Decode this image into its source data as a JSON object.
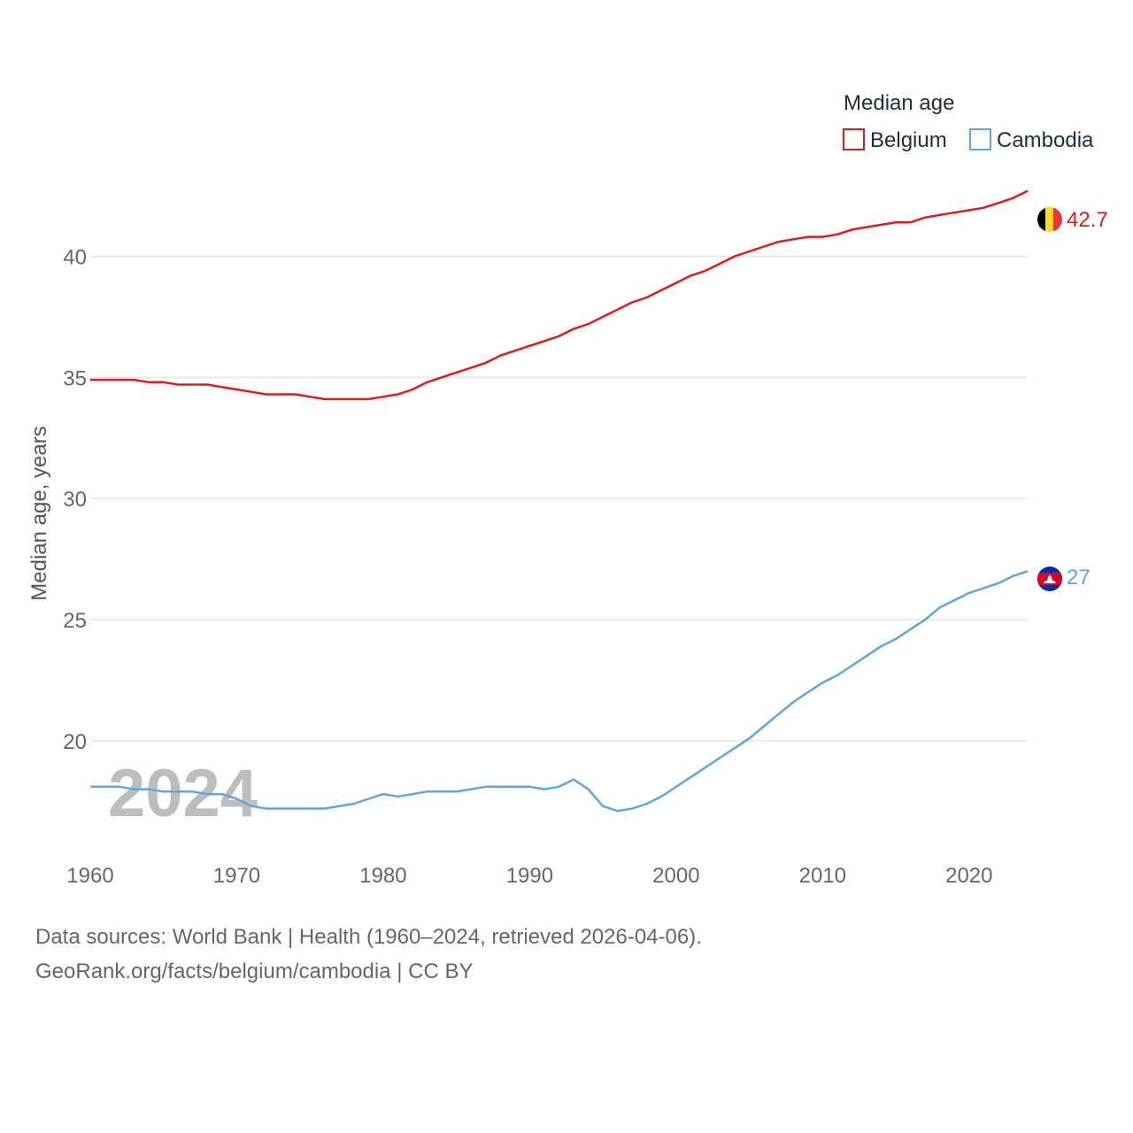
{
  "chart_data": {
    "type": "line",
    "legend_title": "Median age",
    "legend_position": "top-right",
    "ylabel": "Median age, years",
    "xlabel": "",
    "ylim": [
      15.5,
      44
    ],
    "xlim": [
      1960,
      2024
    ],
    "yticks": [
      20,
      25,
      30,
      35,
      40
    ],
    "xticks": [
      1960,
      1970,
      1980,
      1990,
      2000,
      2010,
      2020
    ],
    "grid": true,
    "year_watermark": "2024",
    "series": [
      {
        "name": "Belgium",
        "color": "#e31a1c",
        "end_label": "42.7",
        "flag": "belgium-flag",
        "x": [
          1960,
          1961,
          1962,
          1963,
          1964,
          1965,
          1966,
          1967,
          1968,
          1969,
          1970,
          1971,
          1972,
          1973,
          1974,
          1975,
          1976,
          1977,
          1978,
          1979,
          1980,
          1981,
          1982,
          1983,
          1984,
          1985,
          1986,
          1987,
          1988,
          1989,
          1990,
          1991,
          1992,
          1993,
          1994,
          1995,
          1996,
          1997,
          1998,
          1999,
          2000,
          2001,
          2002,
          2003,
          2004,
          2005,
          2006,
          2007,
          2008,
          2009,
          2010,
          2011,
          2012,
          2013,
          2014,
          2015,
          2016,
          2017,
          2018,
          2019,
          2020,
          2021,
          2022,
          2023,
          2024
        ],
        "values": [
          34.9,
          34.9,
          34.9,
          34.9,
          34.8,
          34.8,
          34.7,
          34.7,
          34.7,
          34.6,
          34.5,
          34.4,
          34.3,
          34.3,
          34.3,
          34.2,
          34.1,
          34.1,
          34.1,
          34.1,
          34.2,
          34.3,
          34.5,
          34.8,
          35.0,
          35.2,
          35.4,
          35.6,
          35.9,
          36.1,
          36.3,
          36.5,
          36.7,
          37.0,
          37.2,
          37.5,
          37.8,
          38.1,
          38.3,
          38.6,
          38.9,
          39.2,
          39.4,
          39.7,
          40.0,
          40.2,
          40.4,
          40.6,
          40.7,
          40.8,
          40.8,
          40.9,
          41.1,
          41.2,
          41.3,
          41.4,
          41.4,
          41.6,
          41.7,
          41.8,
          41.9,
          42.0,
          42.2,
          42.4,
          42.7
        ]
      },
      {
        "name": "Cambodia",
        "color": "#5ea5e4",
        "end_label": "27",
        "flag": "cambodia-flag",
        "x": [
          1960,
          1961,
          1962,
          1963,
          1964,
          1965,
          1966,
          1967,
          1968,
          1969,
          1970,
          1971,
          1972,
          1973,
          1974,
          1975,
          1976,
          1977,
          1978,
          1979,
          1980,
          1981,
          1982,
          1983,
          1984,
          1985,
          1986,
          1987,
          1988,
          1989,
          1990,
          1991,
          1992,
          1993,
          1994,
          1995,
          1996,
          1997,
          1998,
          1999,
          2000,
          2001,
          2002,
          2003,
          2004,
          2005,
          2006,
          2007,
          2008,
          2009,
          2010,
          2011,
          2012,
          2013,
          2014,
          2015,
          2016,
          2017,
          2018,
          2019,
          2020,
          2021,
          2022,
          2023,
          2024
        ],
        "values": [
          18.1,
          18.1,
          18.1,
          18.0,
          18.0,
          17.9,
          17.9,
          17.9,
          17.8,
          17.8,
          17.6,
          17.3,
          17.2,
          17.2,
          17.2,
          17.2,
          17.2,
          17.3,
          17.4,
          17.6,
          17.8,
          17.7,
          17.8,
          17.9,
          17.9,
          17.9,
          18.0,
          18.1,
          18.1,
          18.1,
          18.1,
          18.0,
          18.1,
          18.4,
          18.0,
          17.3,
          17.1,
          17.2,
          17.4,
          17.7,
          18.1,
          18.5,
          18.9,
          19.3,
          19.7,
          20.1,
          20.6,
          21.1,
          21.6,
          22.0,
          22.4,
          22.7,
          23.1,
          23.5,
          23.9,
          24.2,
          24.6,
          25.0,
          25.5,
          25.8,
          26.1,
          26.3,
          26.5,
          26.8,
          27.0
        ]
      }
    ]
  },
  "footer": {
    "source_line": "Data sources: World Bank | Health (1960–2024, retrieved 2026-04-06).",
    "credit_line": "GeoRank.org/facts/belgium/cambodia | CC BY"
  }
}
